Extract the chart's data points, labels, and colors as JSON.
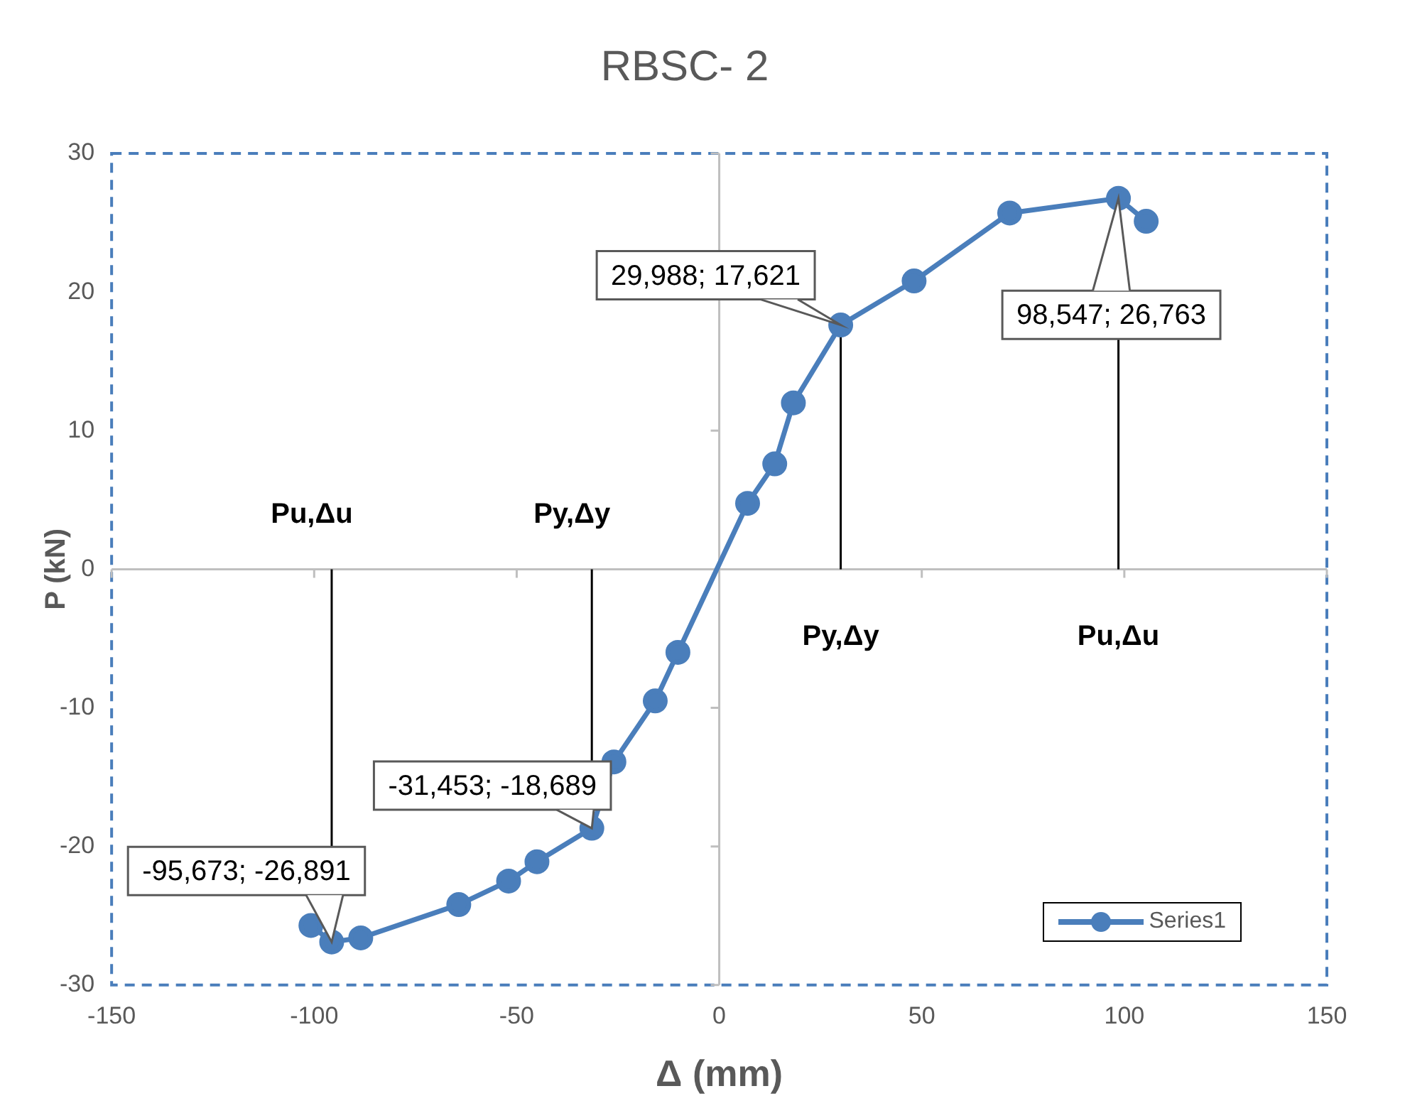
{
  "chart_data": {
    "type": "line",
    "title": "RBSC- 2",
    "xlabel": "Δ (mm)",
    "ylabel": "P (kN)",
    "series": [
      {
        "name": "Series1",
        "color": "#4a7ebb",
        "x": [
          -100.8,
          -95.673,
          -88.5,
          -64.3,
          -52.0,
          -45.0,
          -31.453,
          -26.0,
          -15.8,
          -10.2,
          7.0,
          13.7,
          18.3,
          29.988,
          48.1,
          71.7,
          98.547,
          105.4
        ],
        "values": [
          -25.7,
          -26.891,
          -26.6,
          -24.2,
          -22.5,
          -21.1,
          -18.689,
          -13.9,
          -9.5,
          -6.0,
          4.75,
          7.6,
          12.0,
          17.621,
          20.8,
          25.7,
          26.763,
          25.1
        ]
      }
    ],
    "xlim": [
      -150,
      150
    ],
    "xticks": [
      -150,
      -100,
      -50,
      0,
      50,
      100,
      150
    ],
    "ylim": [
      -30,
      30
    ],
    "yticks": [
      -30,
      -20,
      -10,
      0,
      10,
      20,
      30
    ],
    "marker": "circle",
    "line_style": "solid",
    "legend": "bottom right",
    "ref_lines": [
      {
        "axis": "x",
        "value": 0,
        "color": "#bfbfbf"
      },
      {
        "axis": "y",
        "value": 0,
        "color": "#bfbfbf"
      },
      {
        "axis": "x",
        "value": 29.988,
        "label": "Py,Δy",
        "color": "#000000"
      },
      {
        "axis": "x",
        "value": 98.547,
        "label": "Pu,Δu",
        "color": "#000000"
      },
      {
        "axis": "x",
        "value": -31.453,
        "label": "Py,Δy",
        "color": "#000000"
      },
      {
        "axis": "x",
        "value": -95.673,
        "label": "Pu,Δu",
        "color": "#000000"
      }
    ],
    "annotations": [
      {
        "text": "29,988; 17,621",
        "x": 29.988,
        "y": 17.621
      },
      {
        "text": "98,547; 26,763",
        "x": 98.547,
        "y": 26.763
      },
      {
        "text": "-31,453; -18,689",
        "x": -31.453,
        "y": -18.689
      },
      {
        "text": "-95,673; -26,891",
        "x": -95.673,
        "y": -26.891
      }
    ]
  }
}
